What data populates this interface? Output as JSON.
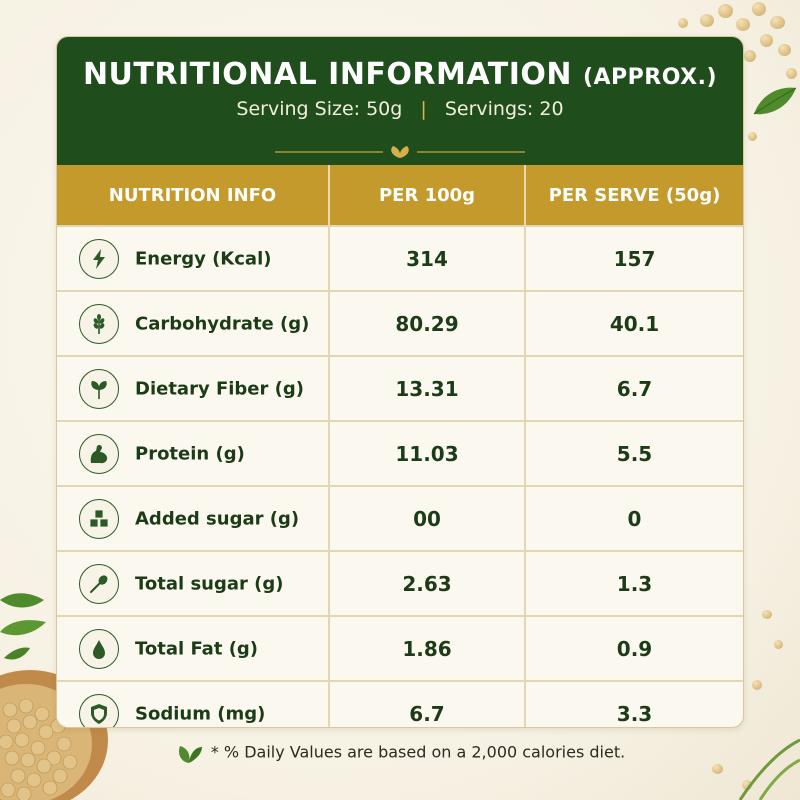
{
  "header": {
    "title": "NUTRITIONAL INFORMATION",
    "title_suffix": "(APPROX.)",
    "serving_size": "Serving Size: 50g",
    "separator": "|",
    "servings": "Servings: 20"
  },
  "table": {
    "columns": [
      "NUTRITION INFO",
      "PER 100g",
      "PER SERVE (50g)"
    ],
    "rows": [
      {
        "icon": "lightning-icon",
        "label": "Energy (Kcal)",
        "per100": "314",
        "perServe": "157"
      },
      {
        "icon": "wheat-icon",
        "label": "Carbohydrate (g)",
        "per100": "80.29",
        "perServe": "40.1"
      },
      {
        "icon": "leaf-icon",
        "label": "Dietary Fiber (g)",
        "per100": "13.31",
        "perServe": "6.7"
      },
      {
        "icon": "muscle-icon",
        "label": "Protein (g)",
        "per100": "11.03",
        "perServe": "5.5"
      },
      {
        "icon": "sugar-cubes-icon",
        "label": "Added sugar (g)",
        "per100": "00",
        "perServe": "0"
      },
      {
        "icon": "spoon-icon",
        "label": "Total sugar (g)",
        "per100": "2.63",
        "perServe": "1.3"
      },
      {
        "icon": "drop-icon",
        "label": "Total Fat (g)",
        "per100": "1.86",
        "perServe": "0.9"
      },
      {
        "icon": "shield-icon",
        "label": "Sodium (mg)",
        "per100": "6.7",
        "perServe": "3.3"
      }
    ]
  },
  "footer": {
    "note": "* % Daily Values are based on a 2,000 calories diet."
  },
  "colors": {
    "header_green": "#1f4d1c",
    "column_gold": "#c49a2c",
    "text_green": "#1c3c18"
  }
}
